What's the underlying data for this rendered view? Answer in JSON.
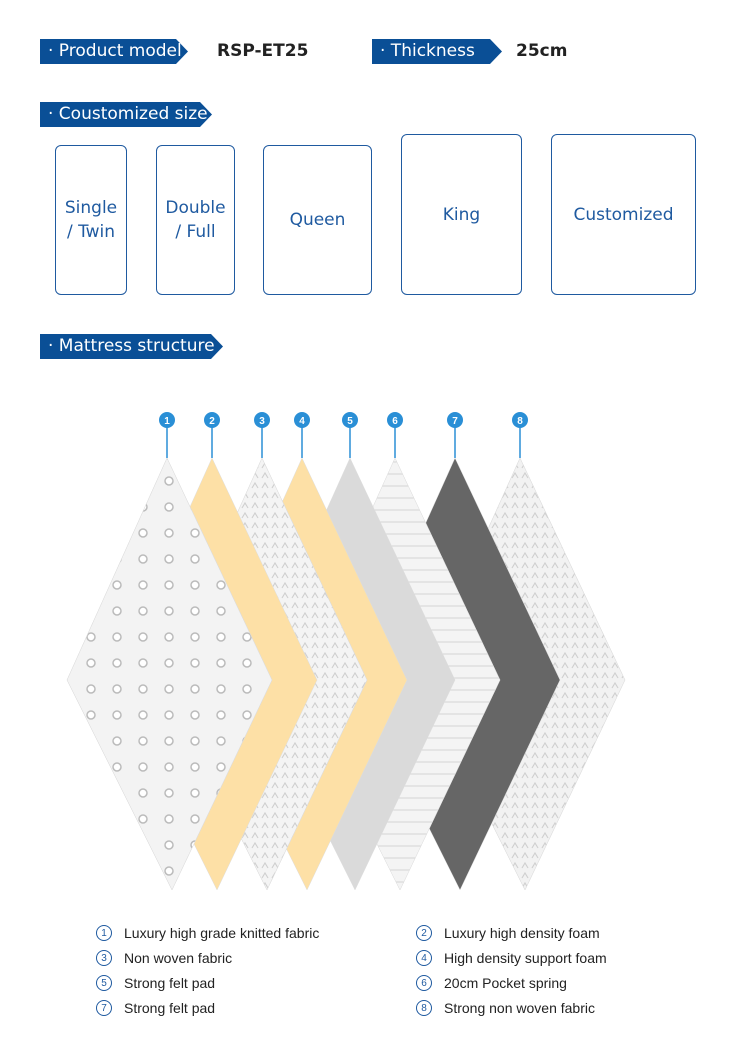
{
  "header": {
    "model_label": "· Product model",
    "model_value": "RSP-ET25",
    "thickness_label": "· Thickness",
    "thickness_value": "25cm"
  },
  "sizes": {
    "title": "· Coustomized size",
    "items": [
      "Single\n/ Twin",
      "Double\n/ Full",
      "Queen",
      "King",
      "Customized"
    ]
  },
  "structure": {
    "title": "· Mattress structure",
    "layers": [
      {
        "num": "1",
        "label": "Luxury high grade knitted fabric",
        "color": "#f3f3f3"
      },
      {
        "num": "2",
        "label": "Luxury high density foam",
        "color": "#fde0a6"
      },
      {
        "num": "3",
        "label": "Non woven fabric",
        "color": "#f4f4f4"
      },
      {
        "num": "4",
        "label": "High density support foam",
        "color": "#fde0a6"
      },
      {
        "num": "5",
        "label": "Strong felt pad",
        "color": "#dadada"
      },
      {
        "num": "6",
        "label": "20cm Pocket spring",
        "color": "#ececec"
      },
      {
        "num": "7",
        "label": "Strong felt pad",
        "color": "#666666"
      },
      {
        "num": "8",
        "label": "Strong non woven fabric",
        "color": "#f2f2f2"
      }
    ]
  },
  "accent": "#0a4f96",
  "marker_color": "#2a8fd6"
}
